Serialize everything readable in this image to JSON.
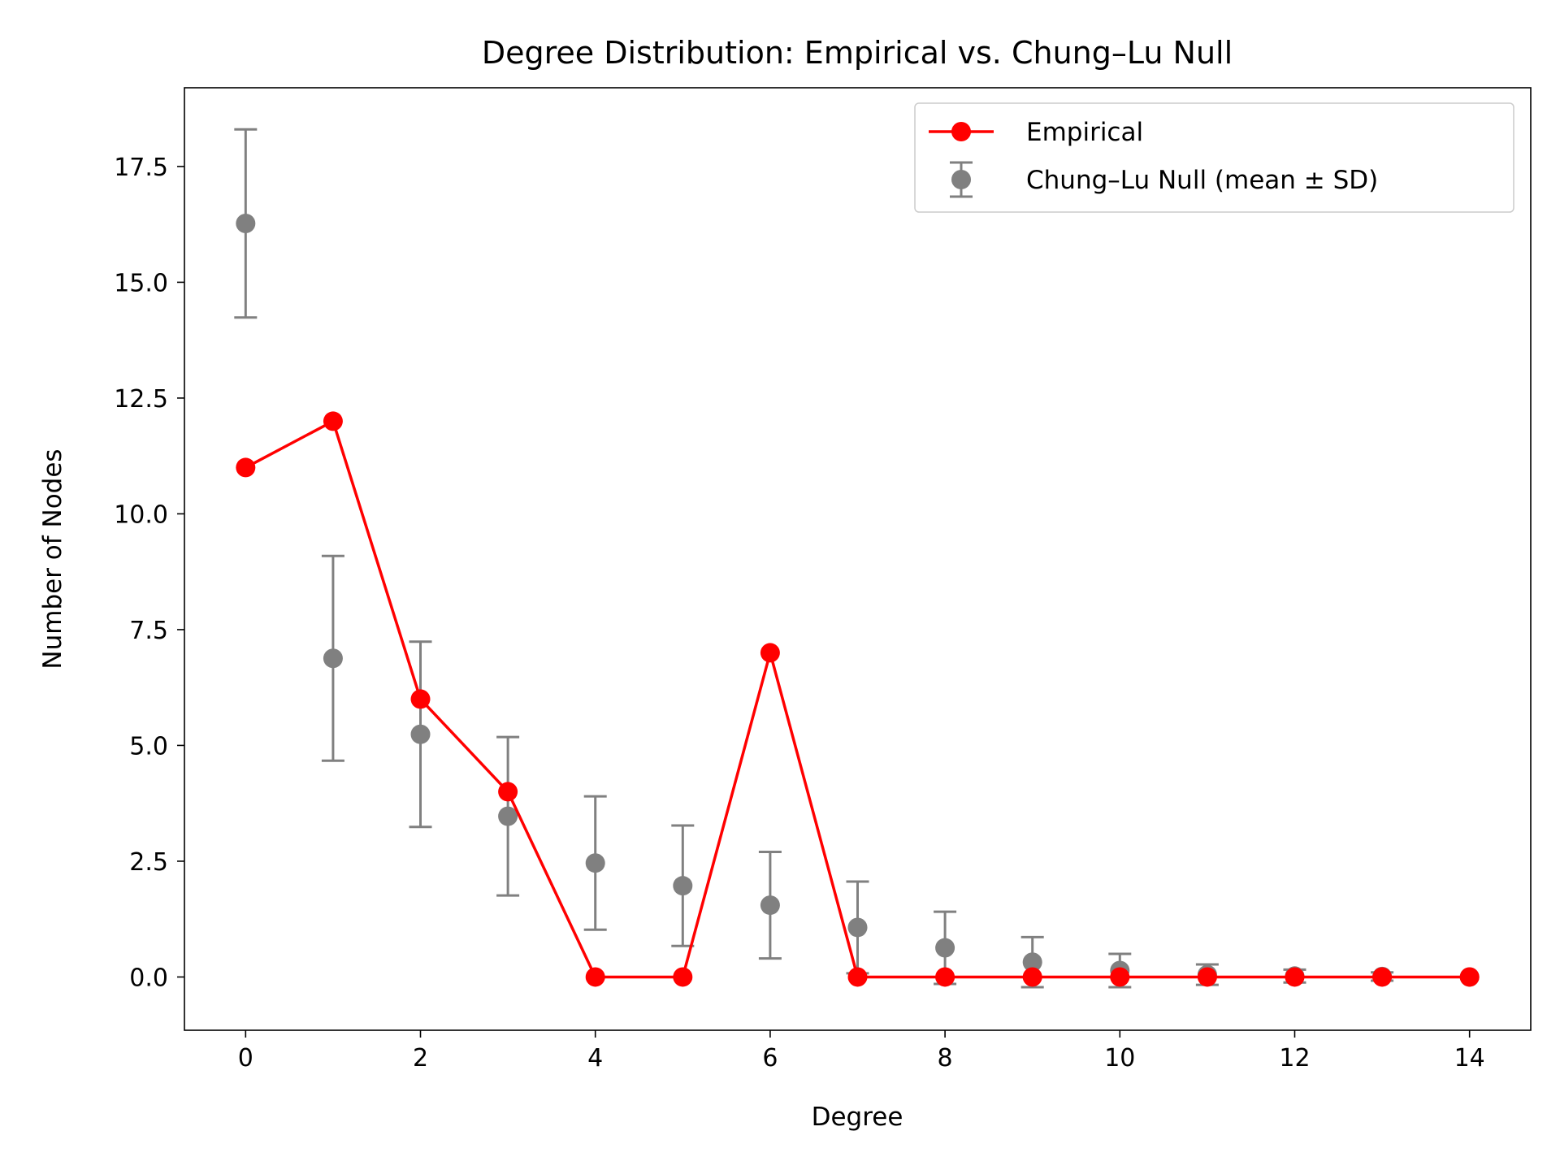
{
  "chart_data": {
    "type": "line",
    "title": "Degree Distribution: Empirical vs. Chung–Lu Null",
    "xlabel": "Degree",
    "ylabel": "Number of Nodes",
    "xlim": [
      -0.7,
      14.7
    ],
    "ylim": [
      -1.15,
      19.2
    ],
    "x_ticks": [
      0,
      2,
      4,
      6,
      8,
      10,
      12,
      14
    ],
    "y_ticks": [
      0.0,
      2.5,
      5.0,
      7.5,
      10.0,
      12.5,
      15.0,
      17.5
    ],
    "x_tick_labels": [
      "0",
      "2",
      "4",
      "6",
      "8",
      "10",
      "12",
      "14"
    ],
    "y_tick_labels": [
      "0.0",
      "2.5",
      "5.0",
      "7.5",
      "10.0",
      "12.5",
      "15.0",
      "17.5"
    ],
    "grid": false,
    "legend_position": "top-right",
    "series": [
      {
        "name": "Empirical",
        "style": "line-marker",
        "color": "#ff0000",
        "x": [
          0,
          1,
          2,
          3,
          4,
          5,
          6,
          7,
          8,
          9,
          10,
          11,
          12,
          13,
          14
        ],
        "values": [
          11,
          12,
          6,
          4,
          0,
          0,
          7,
          0,
          0,
          0,
          0,
          0,
          0,
          0,
          0
        ]
      },
      {
        "name": "Chung–Lu Null (mean ± SD)",
        "style": "errorbar",
        "color": "#808080",
        "x": [
          0,
          1,
          2,
          3,
          4,
          5,
          6,
          7,
          8,
          9,
          10,
          11,
          12,
          13,
          14
        ],
        "values": [
          16.27,
          6.88,
          5.24,
          3.47,
          2.46,
          1.97,
          1.55,
          1.07,
          0.63,
          0.32,
          0.14,
          0.05,
          0.02,
          0.01,
          0.0
        ],
        "sd": [
          2.03,
          2.21,
          2.0,
          1.71,
          1.44,
          1.3,
          1.15,
          0.99,
          0.78,
          0.54,
          0.36,
          0.22,
          0.14,
          0.09,
          0.0
        ]
      }
    ]
  }
}
